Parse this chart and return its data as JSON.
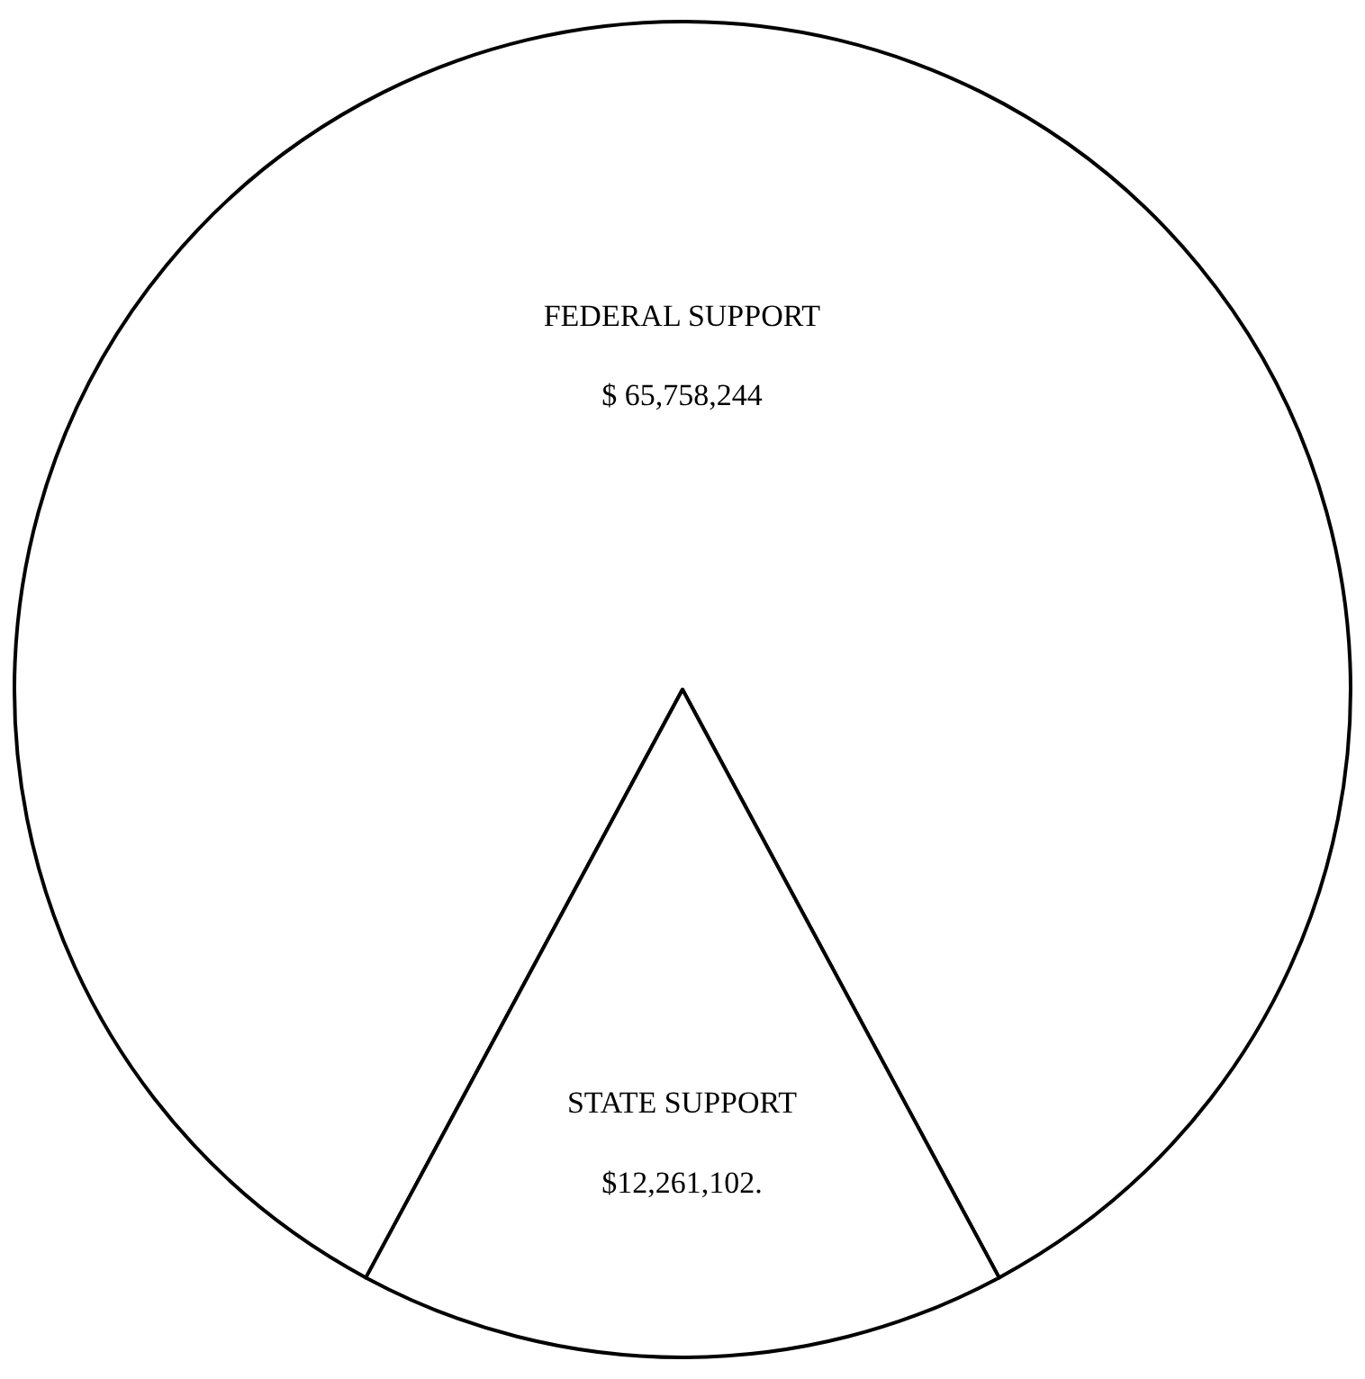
{
  "chart_data": {
    "type": "pie",
    "categories": [
      "FEDERAL SUPPORT",
      "STATE SUPPORT"
    ],
    "values": [
      65758244,
      12261102
    ],
    "colors": [
      "#ffffff",
      "#ffffff"
    ],
    "value_labels": [
      "$ 65,758,244",
      "$12,261,102."
    ],
    "legend": false
  }
}
